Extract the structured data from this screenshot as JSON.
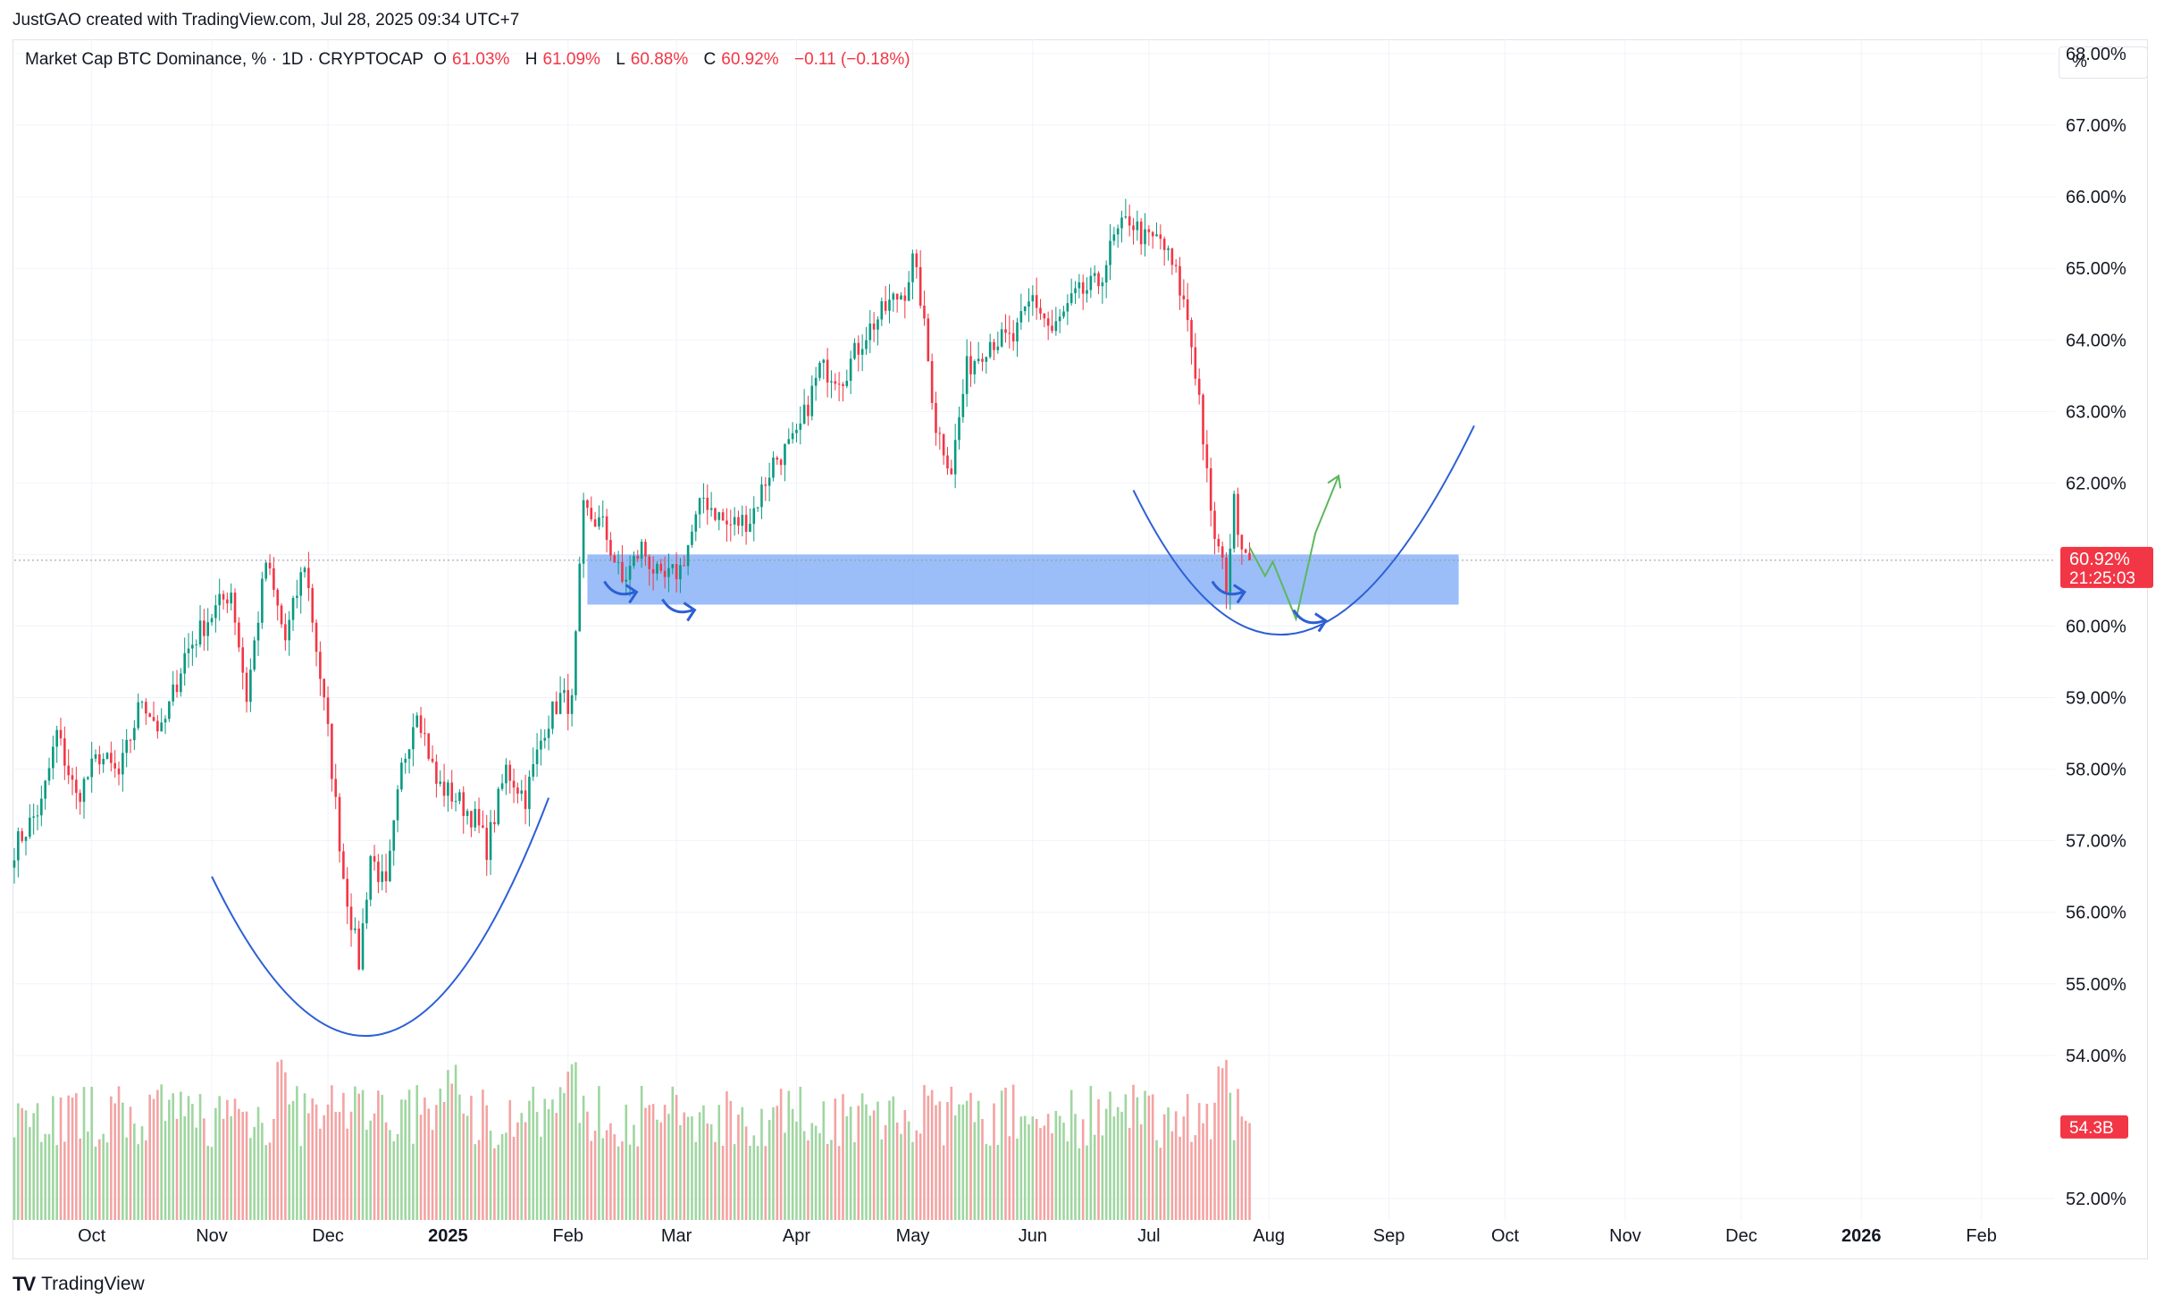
{
  "header": {
    "credit": "JustGAO created with TradingView.com, Jul 28, 2025 09:34 UTC+7"
  },
  "legend": {
    "symbol": "Market Cap BTC Dominance, % · 1D · CRYPTOCAP",
    "o_label": "O",
    "o_value": "61.03%",
    "h_label": "H",
    "h_value": "61.09%",
    "l_label": "L",
    "l_value": "60.88%",
    "c_label": "C",
    "c_value": "60.92%",
    "change": "−0.11 (−0.18%)"
  },
  "scale_button": "%",
  "price_tag": {
    "value": "60.92%",
    "countdown": "21:25:03",
    "color": "#f23645"
  },
  "volume_tag": {
    "value": "54.3B",
    "color": "#f23645"
  },
  "footer": {
    "logo_text": "TradingView",
    "logo_mark": "TV"
  },
  "colors": {
    "up": "#089981",
    "down": "#f23645",
    "vol_up": "#9fd6a0",
    "vol_down": "#f4a3a3",
    "zone": "#7aa8f5",
    "annotation_blue": "#2d5fd6",
    "annotation_green": "#5cb85c"
  },
  "chart_data": {
    "type": "candlestick",
    "title": "Market Cap BTC Dominance, % · 1D · CRYPTOCAP",
    "y_axis": {
      "unit": "%",
      "range": [
        51.7,
        68.2
      ],
      "ticks": [
        "68.00%",
        "67.00%",
        "66.00%",
        "65.00%",
        "64.00%",
        "63.00%",
        "62.00%",
        "61.00%",
        "60.00%",
        "59.00%",
        "58.00%",
        "57.00%",
        "56.00%",
        "55.00%",
        "54.00%",
        "52.00%"
      ],
      "tick_values": [
        68,
        67,
        66,
        65,
        64,
        63,
        62,
        61,
        60,
        59,
        58,
        57,
        56,
        55,
        54,
        52
      ]
    },
    "x_axis": {
      "range": [
        "2024-09-11",
        "2026-02-20"
      ],
      "ticks": [
        {
          "label": "Oct",
          "date": "2024-10-01",
          "bold": false
        },
        {
          "label": "Nov",
          "date": "2024-11-01",
          "bold": false
        },
        {
          "label": "Dec",
          "date": "2024-12-01",
          "bold": false
        },
        {
          "label": "2025",
          "date": "2025-01-01",
          "bold": true
        },
        {
          "label": "Feb",
          "date": "2025-02-01",
          "bold": false
        },
        {
          "label": "Mar",
          "date": "2025-03-01",
          "bold": false
        },
        {
          "label": "Apr",
          "date": "2025-04-01",
          "bold": false
        },
        {
          "label": "May",
          "date": "2025-05-01",
          "bold": false
        },
        {
          "label": "Jun",
          "date": "2025-06-01",
          "bold": false
        },
        {
          "label": "Jul",
          "date": "2025-07-01",
          "bold": false
        },
        {
          "label": "Aug",
          "date": "2025-08-01",
          "bold": false
        },
        {
          "label": "Sep",
          "date": "2025-09-01",
          "bold": false
        },
        {
          "label": "Oct",
          "date": "2025-10-01",
          "bold": false
        },
        {
          "label": "Nov",
          "date": "2025-11-01",
          "bold": false
        },
        {
          "label": "Dec",
          "date": "2025-12-01",
          "bold": false
        },
        {
          "label": "2026",
          "date": "2026-01-01",
          "bold": true
        },
        {
          "label": "Feb",
          "date": "2026-02-01",
          "bold": false
        }
      ]
    },
    "close_series": {
      "start": "2024-09-11",
      "end": "2025-07-27",
      "anchors": [
        [
          "2024-09-11",
          56.9
        ],
        [
          "2024-09-18",
          57.5
        ],
        [
          "2024-09-22",
          58.5
        ],
        [
          "2024-09-27",
          57.6
        ],
        [
          "2024-10-03",
          58.2
        ],
        [
          "2024-10-08",
          57.9
        ],
        [
          "2024-10-14",
          59.0
        ],
        [
          "2024-10-19",
          58.5
        ],
        [
          "2024-10-25",
          59.6
        ],
        [
          "2024-10-31",
          60.1
        ],
        [
          "2024-11-06",
          60.5
        ],
        [
          "2024-11-10",
          59.0
        ],
        [
          "2024-11-15",
          60.9
        ],
        [
          "2024-11-20",
          59.8
        ],
        [
          "2024-11-25",
          60.9
        ],
        [
          "2024-12-01",
          58.5
        ],
        [
          "2024-12-05",
          56.5
        ],
        [
          "2024-12-09",
          55.3
        ],
        [
          "2024-12-12",
          56.8
        ],
        [
          "2024-12-16",
          56.3
        ],
        [
          "2024-12-20",
          58.0
        ],
        [
          "2024-12-24",
          58.9
        ],
        [
          "2024-12-29",
          57.8
        ],
        [
          "2025-01-03",
          57.6
        ],
        [
          "2025-01-08",
          57.3
        ],
        [
          "2025-01-11",
          56.9
        ],
        [
          "2025-01-16",
          58.0
        ],
        [
          "2025-01-21",
          57.6
        ],
        [
          "2025-01-26",
          58.6
        ],
        [
          "2025-01-30",
          59.0
        ],
        [
          "2025-02-02",
          58.9
        ],
        [
          "2025-02-05",
          61.6
        ],
        [
          "2025-02-10",
          61.4
        ],
        [
          "2025-02-15",
          60.6
        ],
        [
          "2025-02-20",
          61.1
        ],
        [
          "2025-02-25",
          60.6
        ],
        [
          "2025-03-02",
          60.8
        ],
        [
          "2025-03-08",
          61.8
        ],
        [
          "2025-03-14",
          61.4
        ],
        [
          "2025-03-20",
          61.5
        ],
        [
          "2025-03-26",
          62.3
        ],
        [
          "2025-04-01",
          62.6
        ],
        [
          "2025-04-07",
          63.6
        ],
        [
          "2025-04-13",
          63.5
        ],
        [
          "2025-04-19",
          64.1
        ],
        [
          "2025-04-25",
          64.5
        ],
        [
          "2025-04-29",
          64.7
        ],
        [
          "2025-05-01",
          65.1
        ],
        [
          "2025-05-03",
          64.6
        ],
        [
          "2025-05-07",
          62.8
        ],
        [
          "2025-05-11",
          62.2
        ],
        [
          "2025-05-15",
          63.6
        ],
        [
          "2025-05-21",
          64.0
        ],
        [
          "2025-05-27",
          64.0
        ],
        [
          "2025-06-01",
          64.6
        ],
        [
          "2025-06-06",
          64.1
        ],
        [
          "2025-06-12",
          64.6
        ],
        [
          "2025-06-18",
          64.8
        ],
        [
          "2025-06-22",
          65.4
        ],
        [
          "2025-06-26",
          65.7
        ],
        [
          "2025-06-30",
          65.4
        ],
        [
          "2025-07-04",
          65.4
        ],
        [
          "2025-07-08",
          64.9
        ],
        [
          "2025-07-11",
          64.3
        ],
        [
          "2025-07-14",
          63.2
        ],
        [
          "2025-07-17",
          61.5
        ],
        [
          "2025-07-21",
          60.6
        ],
        [
          "2025-07-23",
          61.7
        ],
        [
          "2025-07-25",
          61.2
        ],
        [
          "2025-07-27",
          60.92
        ]
      ]
    },
    "volume_peaks": [
      [
        "2024-11-19",
        54.0
      ],
      [
        "2024-12-09",
        53.7
      ],
      [
        "2025-01-02",
        53.9
      ],
      [
        "2025-02-02",
        54.0
      ],
      [
        "2025-07-20",
        54.0
      ]
    ],
    "last_close": 60.92,
    "last_volume": "54.3B",
    "annotations": {
      "zone": {
        "from": "2025-02-06",
        "to": "2025-09-19",
        "y_low": 60.3,
        "y_high": 61.0
      },
      "curve_left": {
        "start": [
          "2024-11-01",
          56.5
        ],
        "bottom": [
          "2024-12-15",
          54.3
        ],
        "end": [
          "2025-01-27",
          57.6
        ]
      },
      "curve_right": {
        "start": [
          "2025-06-27",
          61.9
        ],
        "bottom": [
          "2025-08-08",
          59.9
        ],
        "end": [
          "2025-09-23",
          62.8
        ]
      },
      "green_path": [
        [
          "2025-07-27",
          61.1
        ],
        [
          "2025-07-31",
          60.7
        ],
        [
          "2025-08-02",
          60.9
        ],
        [
          "2025-08-08",
          60.1
        ],
        [
          "2025-08-13",
          61.3
        ],
        [
          "2025-08-19",
          62.1
        ]
      ]
    }
  }
}
